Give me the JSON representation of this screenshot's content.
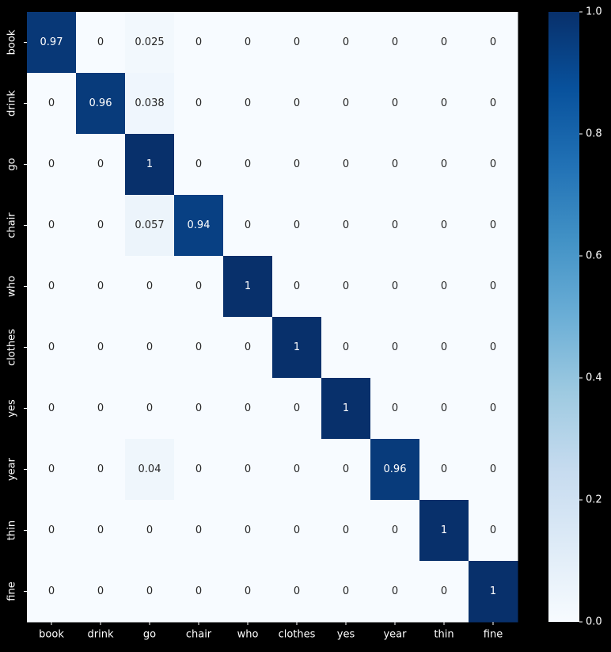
{
  "chart_data": {
    "type": "heatmap",
    "title": "",
    "xlabel": "",
    "ylabel": "",
    "rows": [
      "book",
      "drink",
      "go",
      "chair",
      "who",
      "clothes",
      "yes",
      "year",
      "thin",
      "fine"
    ],
    "columns": [
      "book",
      "drink",
      "go",
      "chair",
      "who",
      "clothes",
      "yes",
      "year",
      "thin",
      "fine"
    ],
    "values": [
      [
        0.97,
        0,
        0.025,
        0,
        0,
        0,
        0,
        0,
        0,
        0
      ],
      [
        0,
        0.96,
        0.038,
        0,
        0,
        0,
        0,
        0,
        0,
        0
      ],
      [
        0,
        0,
        1,
        0,
        0,
        0,
        0,
        0,
        0,
        0
      ],
      [
        0,
        0,
        0.057,
        0.94,
        0,
        0,
        0,
        0,
        0,
        0
      ],
      [
        0,
        0,
        0,
        0,
        1,
        0,
        0,
        0,
        0,
        0
      ],
      [
        0,
        0,
        0,
        0,
        0,
        1,
        0,
        0,
        0,
        0
      ],
      [
        0,
        0,
        0,
        0,
        0,
        0,
        1,
        0,
        0,
        0
      ],
      [
        0,
        0,
        0.04,
        0,
        0,
        0,
        0,
        0.96,
        0,
        0
      ],
      [
        0,
        0,
        0,
        0,
        0,
        0,
        0,
        0,
        1,
        0
      ],
      [
        0,
        0,
        0,
        0,
        0,
        0,
        0,
        0,
        0,
        1
      ]
    ],
    "labels": [
      [
        "0.97",
        "0",
        "0.025",
        "0",
        "0",
        "0",
        "0",
        "0",
        "0",
        "0"
      ],
      [
        "0",
        "0.96",
        "0.038",
        "0",
        "0",
        "0",
        "0",
        "0",
        "0",
        "0"
      ],
      [
        "0",
        "0",
        "1",
        "0",
        "0",
        "0",
        "0",
        "0",
        "0",
        "0"
      ],
      [
        "0",
        "0",
        "0.057",
        "0.94",
        "0",
        "0",
        "0",
        "0",
        "0",
        "0"
      ],
      [
        "0",
        "0",
        "0",
        "0",
        "1",
        "0",
        "0",
        "0",
        "0",
        "0"
      ],
      [
        "0",
        "0",
        "0",
        "0",
        "0",
        "1",
        "0",
        "0",
        "0",
        "0"
      ],
      [
        "0",
        "0",
        "0",
        "0",
        "0",
        "0",
        "1",
        "0",
        "0",
        "0"
      ],
      [
        "0",
        "0",
        "0.04",
        "0",
        "0",
        "0",
        "0",
        "0.96",
        "0",
        "0"
      ],
      [
        "0",
        "0",
        "0",
        "0",
        "0",
        "0",
        "0",
        "0",
        "1",
        "0"
      ],
      [
        "0",
        "0",
        "0",
        "0",
        "0",
        "0",
        "0",
        "0",
        "0",
        "1"
      ]
    ],
    "colormap": "Blues",
    "colormap_stops": [
      "#f7fbff",
      "#deebf7",
      "#c6dbef",
      "#9ecae1",
      "#6baed6",
      "#4292c6",
      "#2171b5",
      "#08519c",
      "#08306b"
    ],
    "vmin": 0,
    "vmax": 1,
    "colorbar_ticks": [
      "0.0",
      "0.2",
      "0.4",
      "0.6",
      "0.8",
      "1.0"
    ],
    "colorbar_tick_values": [
      0,
      0.2,
      0.4,
      0.6,
      0.8,
      1.0
    ],
    "background_color": "#000000",
    "text_color_light": "#ffffff",
    "text_color_dark": "#262626",
    "tick_label_color": "#ffffff"
  }
}
